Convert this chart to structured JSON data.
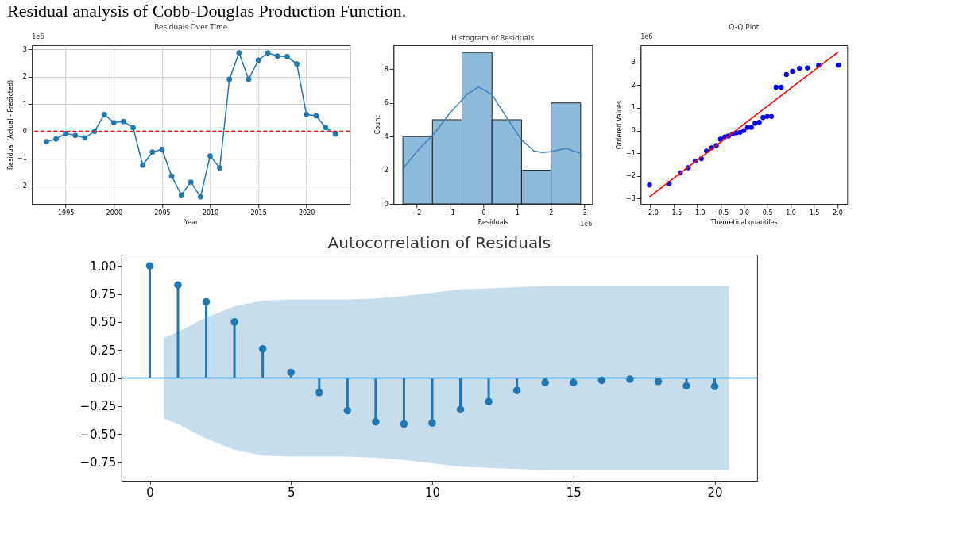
{
  "chart_data": [
    {
      "type": "line",
      "title": "Residuals Over Time",
      "xlabel": "Year",
      "ylabel": "Residual (Actual - Predicted)",
      "annotations": [
        "Residual analysis of Cobb-Douglas Production Function.",
        "1e6"
      ],
      "x": [
        1993,
        1994,
        1995,
        1996,
        1997,
        1998,
        1999,
        2000,
        2001,
        2002,
        2003,
        2004,
        2005,
        2006,
        2007,
        2008,
        2009,
        2010,
        2011,
        2012,
        2013,
        2014,
        2015,
        2016,
        2017,
        2018,
        2019,
        2020,
        2021,
        2022,
        2023
      ],
      "series": [
        {
          "color": "#1f77b4",
          "marker": "circle",
          "values": [
            -0.38,
            -0.28,
            -0.08,
            -0.15,
            -0.24,
            0.0,
            0.62,
            0.32,
            0.36,
            0.14,
            -1.24,
            -0.76,
            -0.66,
            -1.64,
            -2.33,
            -1.86,
            -2.4,
            -0.9,
            -1.34,
            1.91,
            2.88,
            1.91,
            2.61,
            2.88,
            2.76,
            2.74,
            2.47,
            0.62,
            0.57,
            0.14,
            -0.1
          ]
        }
      ],
      "xlim": [
        1991.5,
        2024.5
      ],
      "ylim": [
        -2.66,
        3.16
      ],
      "xticks": [
        1995,
        2000,
        2005,
        2010,
        2015,
        2020
      ],
      "yticks": [
        -2,
        -1,
        0,
        1,
        2,
        3
      ],
      "ref_lines": [
        {
          "axis": "y",
          "value": 0,
          "color": "#ff0000",
          "line_style": "dashed"
        }
      ],
      "grid": true,
      "line_style": "solid"
    },
    {
      "type": "histogram",
      "title": "Histogram of Residuals",
      "xlabel": "Residuals",
      "ylabel": "Count",
      "annotations": [
        "1e6"
      ],
      "bins": [
        -2.4,
        -1.52,
        -0.64,
        0.25,
        1.13,
        2.01,
        2.89
      ],
      "values": [
        4,
        5,
        9,
        5,
        2,
        6
      ],
      "color": "#8ebad9",
      "series": [
        {
          "type": "line",
          "color": "#3b84c0",
          "x": [
            -2.4,
            -1.9,
            -1.5,
            -1.0,
            -0.5,
            -0.15,
            0.25,
            0.7,
            1.13,
            1.5,
            1.75,
            2.0,
            2.45,
            2.89
          ],
          "values": [
            2.1,
            3.3,
            4.1,
            5.4,
            6.5,
            6.95,
            6.5,
            5.1,
            3.8,
            3.15,
            3.05,
            3.1,
            3.3,
            3.0
          ]
        }
      ],
      "xlim": [
        -2.68,
        3.23
      ],
      "ylim": [
        0,
        9.43
      ],
      "xticks": [
        -2,
        -1,
        0,
        1,
        2,
        3
      ],
      "yticks": [
        0,
        2,
        4,
        6,
        8
      ]
    },
    {
      "type": "scatter",
      "title": "Q-Q Plot",
      "xlabel": "Theoretical quantiles",
      "ylabel": "Ordered Values",
      "annotations": [
        "1e6"
      ],
      "series": [
        {
          "type": "scatter",
          "color": "#0000ff",
          "marker": "circle",
          "x": [
            -2.02,
            -1.6,
            -1.36,
            -1.19,
            -1.04,
            -0.91,
            -0.8,
            -0.69,
            -0.59,
            -0.5,
            -0.41,
            -0.33,
            -0.24,
            -0.16,
            -0.08,
            0.0,
            0.08,
            0.16,
            0.24,
            0.33,
            0.41,
            0.5,
            0.59,
            0.69,
            0.8,
            0.91,
            1.04,
            1.19,
            1.36,
            1.6,
            2.02
          ],
          "values": [
            -2.4,
            -2.33,
            -1.86,
            -1.64,
            -1.34,
            -1.24,
            -0.9,
            -0.76,
            -0.66,
            -0.38,
            -0.28,
            -0.24,
            -0.15,
            -0.1,
            -0.08,
            0.0,
            0.14,
            0.14,
            0.32,
            0.36,
            0.57,
            0.62,
            0.62,
            1.91,
            1.91,
            2.47,
            2.61,
            2.74,
            2.76,
            2.88,
            2.88
          ]
        },
        {
          "type": "line",
          "color": "#ff0000",
          "x": [
            -2.02,
            2.02
          ],
          "values": [
            -2.92,
            3.47
          ]
        }
      ],
      "xlim": [
        -2.21,
        2.21
      ],
      "ylim": [
        -3.23,
        3.76
      ],
      "xticks": [
        {
          "value": -2,
          "label": "−2.0"
        },
        {
          "value": -1.5,
          "label": "−1.5"
        },
        {
          "value": -1,
          "label": "−1.0"
        },
        {
          "value": -0.5,
          "label": "−0.5"
        },
        {
          "value": 0,
          "label": "0.0"
        },
        {
          "value": 0.5,
          "label": "0.5"
        },
        {
          "value": 1,
          "label": "1.0"
        },
        {
          "value": 1.5,
          "label": "1.5"
        },
        {
          "value": 2,
          "label": "2.0"
        }
      ],
      "yticks": [
        -3,
        -2,
        -1,
        0,
        1,
        2,
        3
      ]
    },
    {
      "type": "lollipop",
      "title": "Autocorrelation of Residuals",
      "x": [
        0,
        1,
        2,
        3,
        4,
        5,
        6,
        7,
        8,
        9,
        10,
        11,
        12,
        13,
        14,
        15,
        16,
        17,
        18,
        19,
        20
      ],
      "series": [
        {
          "color": "#1f77b4",
          "values": [
            1.0,
            0.83,
            0.68,
            0.5,
            0.26,
            0.05,
            -0.13,
            -0.29,
            -0.39,
            -0.41,
            -0.4,
            -0.28,
            -0.21,
            -0.11,
            -0.04,
            -0.04,
            -0.02,
            -0.01,
            -0.03,
            -0.07,
            -0.075
          ]
        },
        {
          "type": "line",
          "color": "#1f77b4",
          "marker": "none",
          "x": [
            -1.0,
            0.5,
            1,
            2,
            3,
            4,
            5,
            6,
            7,
            8,
            9,
            10,
            11,
            12,
            13,
            14,
            15,
            16,
            17,
            18,
            19,
            20,
            20.5,
            21.5
          ],
          "values": [
            0,
            0,
            0,
            0,
            0,
            0,
            0,
            0,
            0,
            0,
            0,
            0,
            0,
            0,
            0,
            0,
            0,
            0,
            0,
            0,
            0,
            0,
            0,
            0
          ],
          "lower": [
            null,
            -0.36,
            -0.41,
            -0.54,
            -0.64,
            -0.69,
            -0.7,
            -0.7,
            -0.7,
            -0.71,
            -0.73,
            -0.76,
            -0.79,
            -0.8,
            -0.81,
            -0.82,
            -0.82,
            -0.82,
            -0.82,
            -0.82,
            -0.82,
            -0.82,
            -0.82,
            null
          ],
          "upper": [
            null,
            0.36,
            0.41,
            0.54,
            0.64,
            0.69,
            0.7,
            0.7,
            0.7,
            0.71,
            0.73,
            0.76,
            0.79,
            0.8,
            0.81,
            0.82,
            0.82,
            0.82,
            0.82,
            0.82,
            0.82,
            0.82,
            0.82,
            null
          ]
        }
      ],
      "xlim": [
        -1.0,
        21.5
      ],
      "ylim": [
        -0.915,
        1.1
      ],
      "xticks": [
        0,
        5,
        10,
        15,
        20
      ],
      "yticks": [
        {
          "value": -0.75,
          "label": "−0.75"
        },
        {
          "value": -0.5,
          "label": "−0.50"
        },
        {
          "value": -0.25,
          "label": "−0.25"
        },
        {
          "value": 0,
          "label": "0.00"
        },
        {
          "value": 0.25,
          "label": "0.25"
        },
        {
          "value": 0.5,
          "label": "0.50"
        },
        {
          "value": 0.75,
          "label": "0.75"
        },
        {
          "value": 1,
          "label": "1.00"
        }
      ],
      "marker": "circle"
    }
  ]
}
